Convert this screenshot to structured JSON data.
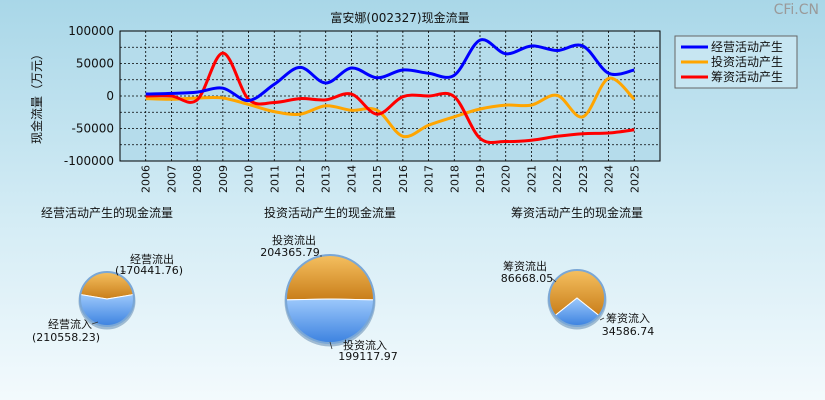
{
  "watermark": "CFi.CN",
  "chart_data": [
    {
      "type": "line",
      "title": "富安娜(002327)现金流量",
      "ylabel": "现金流量（万元）",
      "ylim": [
        -100000,
        100000
      ],
      "yticks": [
        "100000",
        "50000",
        "0",
        "-50000",
        "-100000"
      ],
      "x": [
        "2006",
        "2007",
        "2008",
        "2009",
        "2010",
        "2011",
        "2012",
        "2013",
        "2014",
        "2015",
        "2016",
        "2017",
        "2018",
        "2019",
        "2020",
        "2021",
        "2022",
        "2023",
        "2024",
        "2025"
      ],
      "grid": true,
      "legend_position": "top-right",
      "series": [
        {
          "name": "经营活动产生",
          "color": "#0000ff",
          "values": [
            3000,
            4000,
            6000,
            12000,
            -7000,
            18000,
            44000,
            20000,
            43000,
            28000,
            40000,
            35000,
            32000,
            86000,
            65000,
            77000,
            70000,
            77000,
            35000,
            40000
          ]
        },
        {
          "name": "投资活动产生",
          "color": "#ffa500",
          "values": [
            -4000,
            -5000,
            -3000,
            -3000,
            -13000,
            -24000,
            -28000,
            -15000,
            -22000,
            -22000,
            -62000,
            -45000,
            -32000,
            -20000,
            -14000,
            -14000,
            1000,
            -32000,
            27000,
            -5000
          ]
        },
        {
          "name": "筹资活动产生",
          "color": "#ff0000",
          "values": [
            0,
            0,
            -6000,
            66000,
            -5000,
            -10000,
            -4000,
            -6000,
            3000,
            -28000,
            -1000,
            0,
            -1000,
            -65000,
            -70000,
            -68000,
            -62000,
            -58000,
            -57000,
            -52000
          ]
        }
      ]
    },
    {
      "type": "pie",
      "title": "经营活动产生的现金流量",
      "slices": [
        {
          "label": "经营流出",
          "value_text": "(170441.76)",
          "value": 170441.76,
          "color": "#e8a238"
        },
        {
          "label": "经营流入",
          "value_text": "(210558.23)",
          "value": 210558.23,
          "color": "#5a9fef"
        }
      ]
    },
    {
      "type": "pie",
      "title": "投资活动产生的现金流量",
      "slices": [
        {
          "label": "投资流出",
          "value_text": "204365.79",
          "value": 204365.79,
          "color": "#e8a238"
        },
        {
          "label": "投资流入",
          "value_text": "199117.97",
          "value": 199117.97,
          "color": "#5a9fef"
        }
      ]
    },
    {
      "type": "pie",
      "title": "筹资活动产生的现金流量",
      "slices": [
        {
          "label": "筹资流出",
          "value_text": "86668.05",
          "value": 86668.05,
          "color": "#e8a238"
        },
        {
          "label": "筹资流入",
          "value_text": "34586.74",
          "value": 34586.74,
          "color": "#5a9fef"
        }
      ]
    }
  ]
}
